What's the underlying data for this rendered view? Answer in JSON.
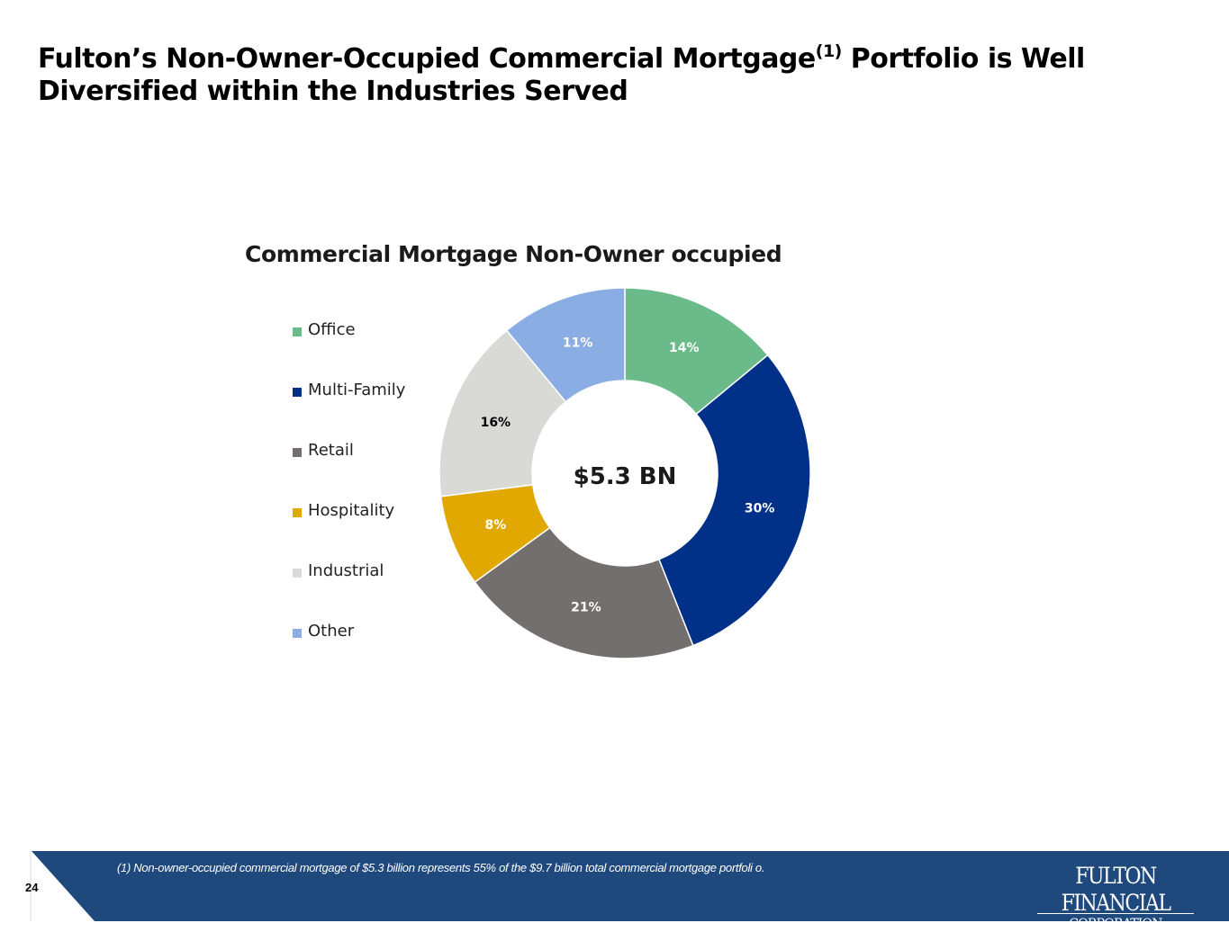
{
  "slide": {
    "title_part1": "Fulton’s Non-Owner-Occupied Commercial Mortgage",
    "title_superscript": "(1)",
    "title_part2": " Portfolio is Well Diversified within the Industries Served",
    "page_number": "24",
    "footnote": "(1) Non-owner-occupied commercial mortgage of $5.3 billion represents 55% of the $9.7 billion total commercial mortgage portfoli o.",
    "logo_line1": "FULTON FINANCIAL",
    "logo_line2": "CORPORATION",
    "footer_color": "#1f497d"
  },
  "chart_data": {
    "type": "pie",
    "variant": "donut",
    "title": "Commercial Mortgage Non-Owner occupied",
    "center_label": "$5.3 BN",
    "legend_position": "left",
    "categories": [
      "Office",
      "Multi-Family",
      "Retail",
      "Hospitality",
      "Industrial",
      "Other"
    ],
    "values": [
      14,
      30,
      21,
      8,
      16,
      11
    ],
    "data_labels": [
      "14%",
      "30%",
      "21%",
      "8%",
      "16%",
      "11%"
    ],
    "colors": [
      "#6abb89",
      "#003087",
      "#736f6e",
      "#e0a800",
      "#d9d9d6",
      "#8aaee3"
    ],
    "label_colors": [
      "#ffffff",
      "#ffffff",
      "#ffffff",
      "#ffffff",
      "#000000",
      "#ffffff"
    ]
  }
}
